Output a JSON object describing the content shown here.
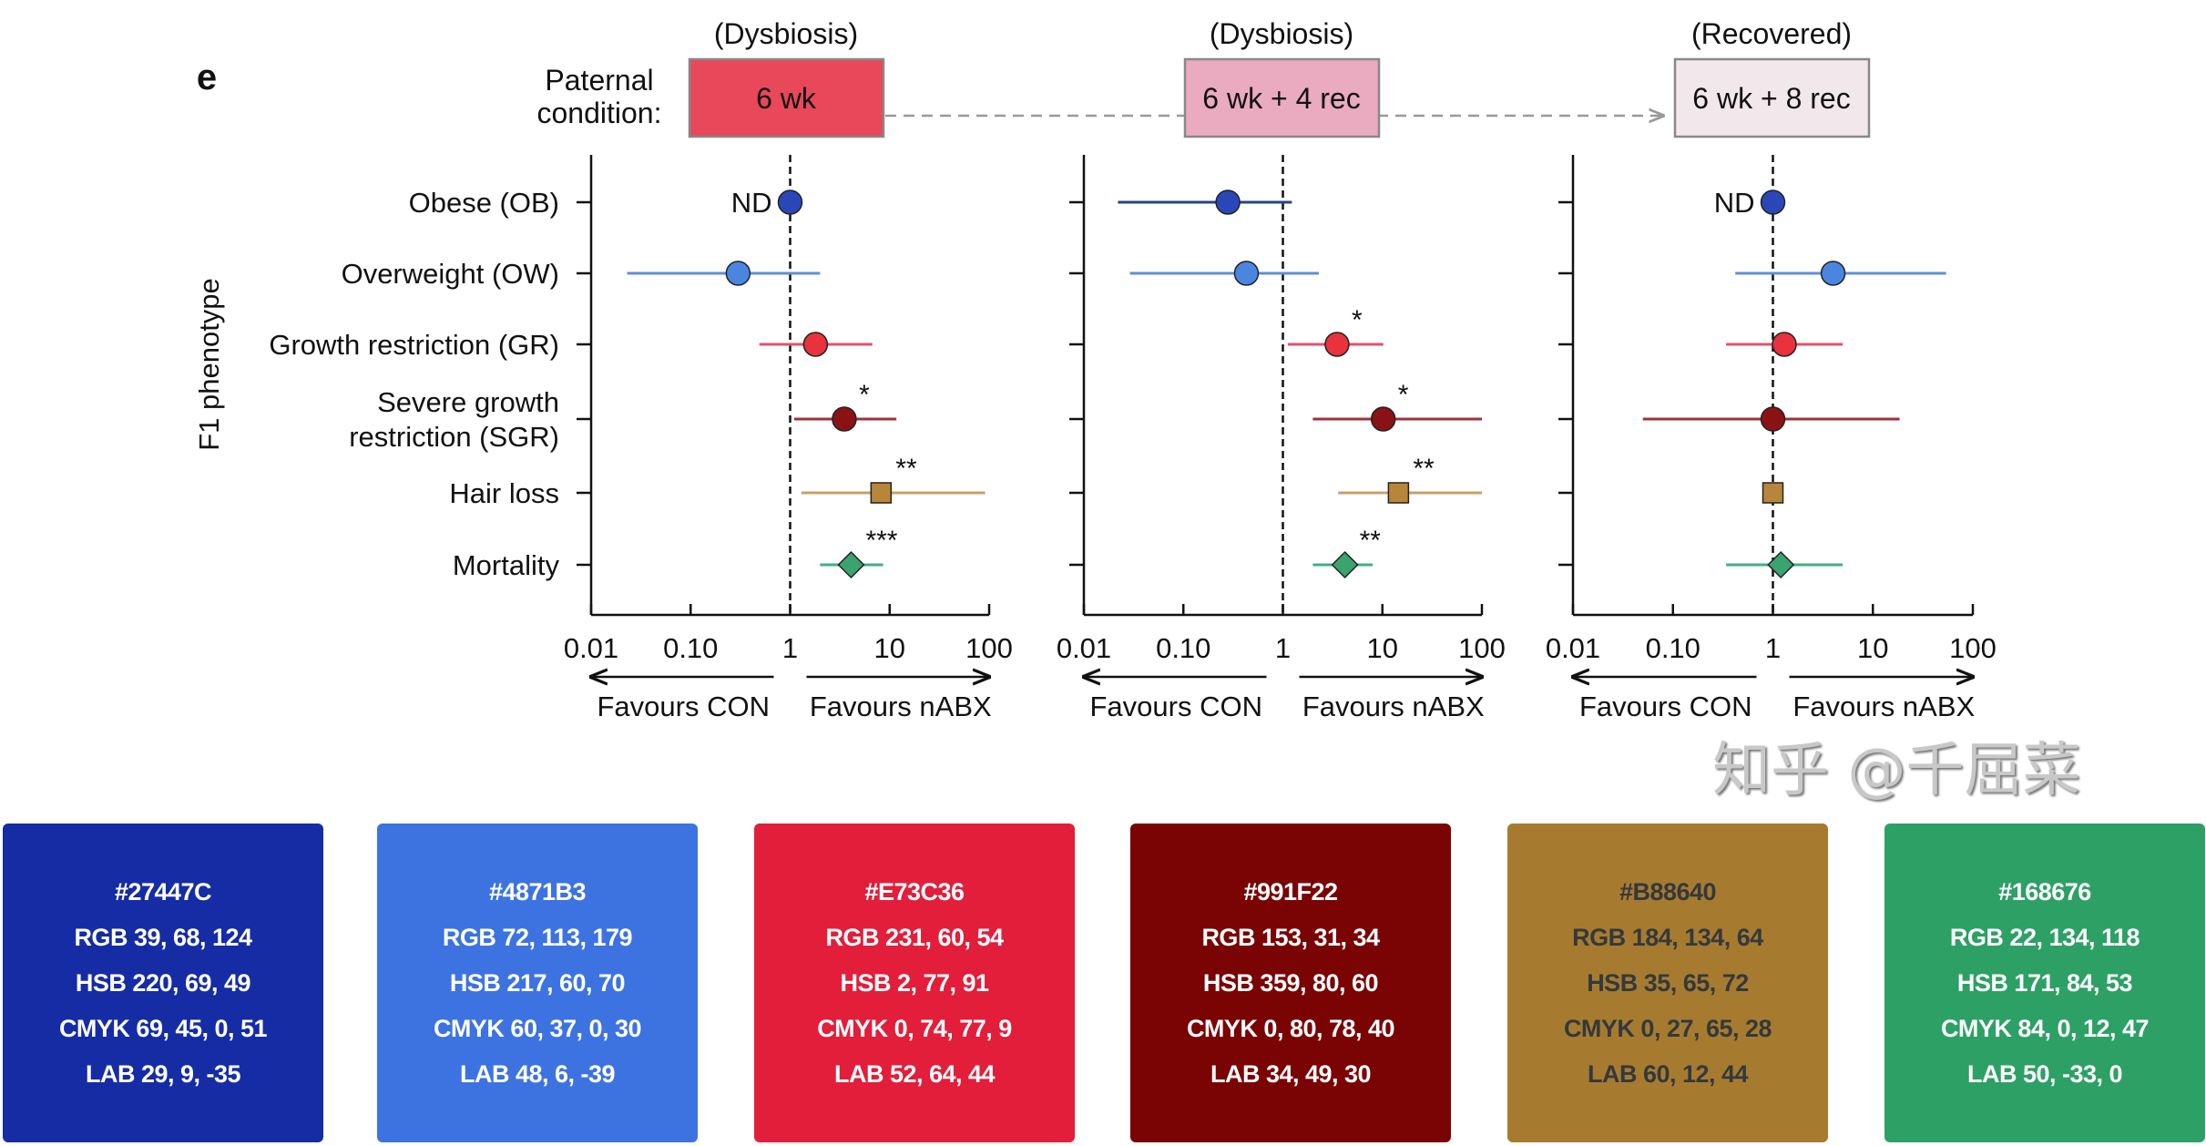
{
  "chart_data": {
    "type": "scatter",
    "subtype": "forest-plot",
    "panel_letter": "e",
    "row_label_title": "Paternal condition:",
    "ylabel": "F1 phenotype",
    "x_scale": "log",
    "xlim": [
      0.01,
      100
    ],
    "x_ticks": [
      "0.01",
      "0.10",
      "1",
      "10",
      "100"
    ],
    "x_tick_values": [
      0.01,
      0.1,
      1,
      10,
      100
    ],
    "reference_line": 1,
    "direction_labels": {
      "left": "Favours CON",
      "right": "Favours nABX"
    },
    "phenotypes": [
      "Obese (OB)",
      "Overweight (OW)",
      "Growth restriction (GR)",
      "Severe growth restriction (SGR)",
      "Hair loss",
      "Mortality"
    ],
    "phenotype_lines": [
      [
        "Obese (OB)"
      ],
      [
        "Overweight (OW)"
      ],
      [
        "Growth restriction (GR)"
      ],
      [
        "Severe growth",
        "restriction (SGR)"
      ],
      [
        "Hair loss"
      ],
      [
        "Mortality"
      ]
    ],
    "markers": [
      "circle",
      "circle",
      "circle",
      "circle",
      "square",
      "diamond"
    ],
    "colors": [
      "#27447C",
      "#4871B3",
      "#E73C36",
      "#991F22",
      "#B88640",
      "#168676"
    ],
    "panels": [
      {
        "state": "(Dysbiosis)",
        "condition": "6 wk",
        "box_color": "#e8485a",
        "rows": [
          {
            "value": 1,
            "ci": null,
            "sig": "",
            "note": "ND"
          },
          {
            "value": 0.3,
            "ci": [
              0.023,
              2.0
            ],
            "sig": "",
            "note": ""
          },
          {
            "value": 1.8,
            "ci": [
              0.49,
              6.7
            ],
            "sig": "",
            "note": ""
          },
          {
            "value": 3.5,
            "ci": [
              1.1,
              11.7
            ],
            "sig": "*",
            "note": ""
          },
          {
            "value": 8.2,
            "ci": [
              1.3,
              91
            ],
            "sig": "**",
            "note": ""
          },
          {
            "value": 4.1,
            "ci": [
              2.0,
              8.6
            ],
            "sig": "***",
            "note": ""
          }
        ]
      },
      {
        "state": "(Dysbiosis)",
        "condition": "6 wk + 4 rec",
        "box_color": "#eaaac0",
        "rows": [
          {
            "value": 0.28,
            "ci": [
              0.022,
              1.23
            ],
            "sig": "",
            "note": ""
          },
          {
            "value": 0.43,
            "ci": [
              0.029,
              2.3
            ],
            "sig": "",
            "note": ""
          },
          {
            "value": 3.5,
            "ci": [
              1.12,
              10.2
            ],
            "sig": "*",
            "note": ""
          },
          {
            "value": 10.2,
            "ci": [
              2.0,
              100
            ],
            "sig": "*",
            "note": ""
          },
          {
            "value": 14.5,
            "ci": [
              3.6,
              100
            ],
            "sig": "**",
            "note": ""
          },
          {
            "value": 4.2,
            "ci": [
              2.0,
              8.0
            ],
            "sig": "**",
            "note": ""
          }
        ]
      },
      {
        "state": "(Recovered)",
        "condition": "6 wk + 8 rec",
        "box_color": "#f2e7eb",
        "rows": [
          {
            "value": 1,
            "ci": null,
            "sig": "",
            "note": "ND"
          },
          {
            "value": 4.0,
            "ci": [
              0.42,
              54
            ],
            "sig": "",
            "note": ""
          },
          {
            "value": 1.3,
            "ci": [
              0.34,
              5.0
            ],
            "sig": "",
            "note": ""
          },
          {
            "value": 1.0,
            "ci": [
              0.05,
              18.5
            ],
            "sig": "",
            "note": ""
          },
          {
            "value": 1.0,
            "ci": null,
            "sig": "",
            "note": ""
          },
          {
            "value": 1.2,
            "ci": [
              0.34,
              5.0
            ],
            "sig": "",
            "note": ""
          }
        ]
      }
    ]
  },
  "swatches": [
    {
      "fill": "#152ca4",
      "text_color": "#ffffff",
      "hex": "#27447C",
      "rgb": "RGB 39, 68, 124",
      "hsb": "HSB 220, 69, 49",
      "cmyk": "CMYK 69, 45, 0, 51",
      "lab": "LAB 29, 9, -35"
    },
    {
      "fill": "#3d73e1",
      "text_color": "#ffffff",
      "hex": "#4871B3",
      "rgb": "RGB 72, 113, 179",
      "hsb": "HSB 217, 60, 70",
      "cmyk": "CMYK 60, 37, 0, 30",
      "lab": "LAB 48, 6, -39"
    },
    {
      "fill": "#e21e3a",
      "text_color": "#ffffff",
      "hex": "#E73C36",
      "rgb": "RGB 231, 60, 54",
      "hsb": "HSB 2, 77, 91",
      "cmyk": "CMYK 0, 74, 77, 9",
      "lab": "LAB 52, 64, 44"
    },
    {
      "fill": "#7a0303",
      "text_color": "#ffffff",
      "hex": "#991F22",
      "rgb": "RGB 153, 31, 34",
      "hsb": "HSB 359, 80, 60",
      "cmyk": "CMYK 0, 80, 78, 40",
      "lab": "LAB 34, 49, 30"
    },
    {
      "fill": "#a77b2f",
      "text_color": "#33393d",
      "hex": "#B88640",
      "rgb": "RGB 184, 134, 64",
      "hsb": "HSB 35, 65, 72",
      "cmyk": "CMYK 0, 27, 65, 28",
      "lab": "LAB 60, 12, 44"
    },
    {
      "fill": "#2da066",
      "text_color": "#ffffff",
      "hex": "#168676",
      "rgb": "RGB 22, 134, 118",
      "hsb": "HSB 171, 84, 53",
      "cmyk": "CMYK 84, 0, 12, 47",
      "lab": "LAB 50, -33, 0"
    }
  ],
  "watermark": "知乎 @千屈菜"
}
